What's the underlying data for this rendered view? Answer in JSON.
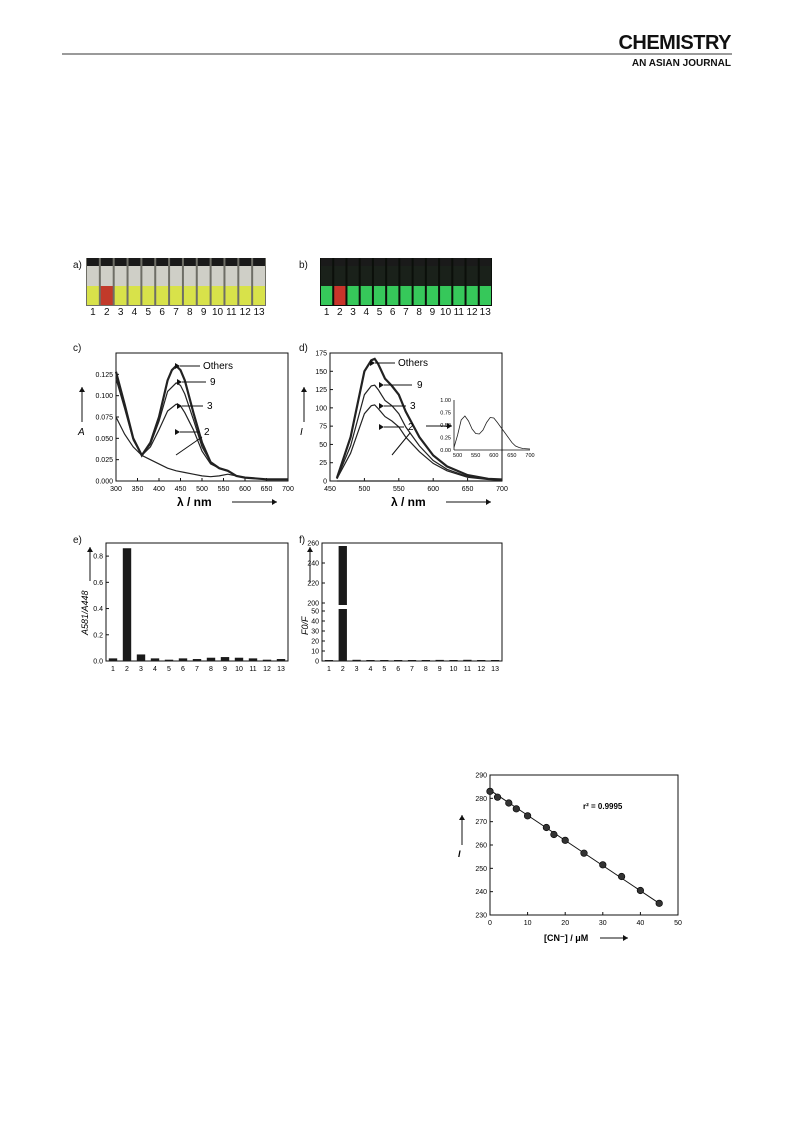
{
  "header": {
    "brand_line1": "CHEMISTRY",
    "brand_line2_a": "AN ",
    "brand_line2_b": "ASIAN",
    "brand_line2_c": " JOURNAL"
  },
  "panels": {
    "a": "a)",
    "b": "b)",
    "c": "c)",
    "d": "d)",
    "e": "e)",
    "f": "f)"
  },
  "photo_a": {
    "labels": [
      "1",
      "2",
      "3",
      "4",
      "5",
      "6",
      "7",
      "8",
      "9",
      "10",
      "11",
      "12",
      "13"
    ],
    "liquid_color": "#d8e24a",
    "highlight_color": "#c23a2a"
  },
  "photo_b": {
    "labels": [
      "1",
      "2",
      "3",
      "4",
      "5",
      "6",
      "7",
      "8",
      "9",
      "10",
      "11",
      "12",
      "13"
    ],
    "liquid_color": "#36c85a",
    "highlight_color": "#c8342a"
  },
  "chart_data": [
    {
      "id": "c",
      "type": "line",
      "xlabel": "λ / nm",
      "ylabel": "A",
      "xlim": [
        300,
        700
      ],
      "ylim": [
        0,
        0.15
      ],
      "xticks": [
        "300",
        "350",
        "400",
        "450",
        "500",
        "550",
        "600",
        "650",
        "700"
      ],
      "yticks": [
        "0.000",
        "0.025",
        "0.050",
        "0.075",
        "0.100",
        "0.125"
      ],
      "series": [
        {
          "name": "Others",
          "x": [
            300,
            320,
            340,
            360,
            380,
            400,
            420,
            430,
            440,
            450,
            460,
            480,
            500,
            520,
            540,
            560,
            580,
            600,
            650,
            700
          ],
          "y": [
            0.128,
            0.09,
            0.05,
            0.03,
            0.045,
            0.075,
            0.118,
            0.13,
            0.135,
            0.13,
            0.118,
            0.08,
            0.045,
            0.022,
            0.015,
            0.012,
            0.006,
            0.004,
            0.002,
            0.002
          ]
        },
        {
          "name": "9",
          "x": [
            300,
            320,
            340,
            360,
            380,
            400,
            420,
            440,
            450,
            460,
            480,
            500,
            520,
            540,
            560,
            580,
            600,
            650,
            700
          ],
          "y": [
            0.125,
            0.088,
            0.05,
            0.03,
            0.043,
            0.07,
            0.105,
            0.115,
            0.112,
            0.102,
            0.072,
            0.04,
            0.022,
            0.015,
            0.012,
            0.006,
            0.004,
            0.002,
            0.002
          ]
        },
        {
          "name": "3",
          "x": [
            300,
            320,
            340,
            360,
            380,
            400,
            420,
            440,
            450,
            460,
            480,
            500,
            520,
            540,
            560,
            580,
            600,
            650,
            700
          ],
          "y": [
            0.12,
            0.085,
            0.048,
            0.03,
            0.04,
            0.06,
            0.082,
            0.09,
            0.088,
            0.08,
            0.06,
            0.035,
            0.02,
            0.015,
            0.012,
            0.006,
            0.004,
            0.002,
            0.002
          ]
        },
        {
          "name": "2",
          "x": [
            300,
            320,
            340,
            360,
            380,
            400,
            420,
            440,
            460,
            480,
            500,
            520,
            540,
            560,
            580,
            600,
            650,
            700
          ],
          "y": [
            0.075,
            0.055,
            0.04,
            0.03,
            0.025,
            0.02,
            0.015,
            0.012,
            0.01,
            0.008,
            0.006,
            0.005,
            0.006,
            0.008,
            0.006,
            0.004,
            0.002,
            0.002
          ]
        }
      ],
      "annotations": [
        "Others",
        "9",
        "3",
        "2"
      ]
    },
    {
      "id": "d",
      "type": "line",
      "xlabel": "λ / nm",
      "ylabel": "I",
      "xlim": [
        450,
        700
      ],
      "ylim": [
        0,
        175
      ],
      "xticks": [
        "450",
        "500",
        "550",
        "600",
        "650",
        "700"
      ],
      "yticks": [
        "0",
        "25",
        "50",
        "75",
        "100",
        "125",
        "150",
        "175"
      ],
      "series": [
        {
          "name": "Others",
          "x": [
            460,
            480,
            500,
            510,
            515,
            520,
            530,
            540,
            550,
            560,
            580,
            600,
            620,
            650,
            680,
            700
          ],
          "y": [
            4,
            60,
            150,
            165,
            167,
            160,
            140,
            130,
            118,
            95,
            60,
            35,
            20,
            8,
            3,
            2
          ]
        },
        {
          "name": "9",
          "x": [
            460,
            480,
            500,
            510,
            515,
            520,
            530,
            540,
            550,
            560,
            580,
            600,
            620,
            650,
            680,
            700
          ],
          "y": [
            3,
            48,
            118,
            130,
            131,
            125,
            110,
            103,
            92,
            74,
            48,
            28,
            16,
            6,
            3,
            2
          ]
        },
        {
          "name": "3",
          "x": [
            460,
            480,
            500,
            510,
            515,
            520,
            530,
            540,
            550,
            560,
            580,
            600,
            620,
            650,
            680,
            700
          ],
          "y": [
            3,
            38,
            92,
            103,
            104,
            99,
            88,
            82,
            74,
            60,
            40,
            24,
            14,
            5,
            2,
            1
          ]
        },
        {
          "name": "2",
          "x": [
            460,
            500,
            550,
            600,
            650,
            700
          ],
          "y": [
            0,
            0,
            0,
            0,
            0,
            0
          ]
        }
      ],
      "annotations": [
        "Others",
        "9",
        "3",
        "2"
      ],
      "inset": {
        "xticks": [
          "500",
          "550",
          "600",
          "650",
          "700"
        ],
        "yticks": [
          "0.00",
          "0.25",
          "0.50",
          "0.75",
          "1.00"
        ],
        "x": [
          490,
          500,
          510,
          520,
          530,
          540,
          550,
          560,
          570,
          580,
          590,
          600,
          610,
          620,
          630,
          640,
          650,
          660,
          670,
          680,
          700
        ],
        "y": [
          0.05,
          0.3,
          0.6,
          0.68,
          0.58,
          0.42,
          0.33,
          0.32,
          0.4,
          0.55,
          0.65,
          0.64,
          0.55,
          0.45,
          0.35,
          0.25,
          0.15,
          0.08,
          0.05,
          0.03,
          0.02
        ]
      }
    },
    {
      "id": "e",
      "type": "bar",
      "ylabel": "A581/A448",
      "ylim": [
        0,
        0.9
      ],
      "categories": [
        "1",
        "2",
        "3",
        "4",
        "5",
        "6",
        "7",
        "8",
        "9",
        "10",
        "11",
        "12",
        "13"
      ],
      "values": [
        0.02,
        0.86,
        0.05,
        0.02,
        0.01,
        0.02,
        0.015,
        0.025,
        0.03,
        0.025,
        0.02,
        0.01,
        0.015
      ],
      "yticks": [
        "0.0",
        "0.2",
        "0.4",
        "0.6",
        "0.8"
      ]
    },
    {
      "id": "f",
      "type": "bar",
      "ylabel": "F0/F",
      "ylim": [
        0,
        260
      ],
      "categories": [
        "1",
        "2",
        "3",
        "4",
        "5",
        "6",
        "7",
        "8",
        "9",
        "10",
        "11",
        "12",
        "13"
      ],
      "values": [
        1,
        257,
        1.2,
        1,
        1,
        1,
        1,
        1,
        1.1,
        1,
        1.2,
        1,
        1
      ],
      "yticks": [
        "0",
        "10",
        "20",
        "30",
        "40",
        "50",
        "200",
        "220",
        "240",
        "260"
      ]
    },
    {
      "id": "g",
      "type": "scatter",
      "xlabel": "[CN⁻] / μM",
      "ylabel": "I",
      "xlim": [
        0,
        50
      ],
      "ylim": [
        230,
        290
      ],
      "xticks": [
        "0",
        "10",
        "20",
        "30",
        "40",
        "50"
      ],
      "yticks": [
        "230",
        "240",
        "250",
        "260",
        "270",
        "280",
        "290"
      ],
      "annotation": "r² = 0.9995",
      "x": [
        0,
        2,
        5,
        7,
        10,
        15,
        17,
        20,
        25,
        30,
        35,
        40,
        45
      ],
      "y": [
        283,
        280.5,
        278,
        275.5,
        272.5,
        267.5,
        264.5,
        262,
        256.5,
        251.5,
        246.5,
        240.5,
        235
      ],
      "fit": {
        "x": [
          0,
          45
        ],
        "y": [
          283.5,
          235
        ]
      }
    }
  ]
}
